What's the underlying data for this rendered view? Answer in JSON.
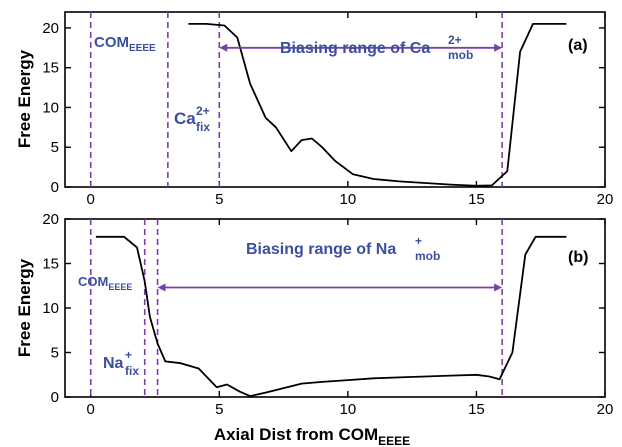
{
  "chart_data": [
    {
      "type": "line",
      "panel_label": "(a)",
      "ylabel": "Free Energy",
      "xlim": [
        -1,
        20
      ],
      "ylim": [
        0,
        22
      ],
      "xticks": [
        0,
        5,
        10,
        15,
        20
      ],
      "yticks": [
        0,
        5,
        10,
        15,
        20
      ],
      "x": [
        3.8,
        4.5,
        5.2,
        5.7,
        6.2,
        6.8,
        7.2,
        7.8,
        8.2,
        8.6,
        9.0,
        9.5,
        10.2,
        11.0,
        12.0,
        13.0,
        14.0,
        15.0,
        15.6,
        16.2,
        16.7,
        17.2,
        18.5
      ],
      "y": [
        20.5,
        20.5,
        20.3,
        18.8,
        13.0,
        8.7,
        7.5,
        4.5,
        5.9,
        6.1,
        5.0,
        3.3,
        1.6,
        1.0,
        0.7,
        0.5,
        0.3,
        0.15,
        0.2,
        2.0,
        17.0,
        20.5,
        20.5
      ],
      "vlines": [
        0,
        3,
        5,
        16
      ],
      "annotations": {
        "com": {
          "base": "COM",
          "sub": "EEEE"
        },
        "fix": {
          "base": "Ca",
          "sup": "2+",
          "sub": "fix"
        },
        "range": {
          "text": "Biasing range of Ca",
          "sup": "2+",
          "sub": "mob",
          "from": 5,
          "to": 16,
          "y": 17.5
        }
      }
    },
    {
      "type": "line",
      "panel_label": "(b)",
      "ylabel": "Free Energy",
      "xlabel": {
        "base": "Axial Dist from COM",
        "sub": "EEEE"
      },
      "xlim": [
        -1,
        20
      ],
      "ylim": [
        0,
        20
      ],
      "xticks": [
        0,
        5,
        10,
        15,
        20
      ],
      "yticks": [
        0,
        5,
        10,
        15,
        20
      ],
      "x": [
        0.2,
        1.3,
        1.8,
        2.1,
        2.3,
        2.6,
        2.9,
        3.5,
        4.2,
        4.9,
        5.3,
        5.8,
        6.2,
        6.8,
        7.5,
        8.2,
        9.0,
        10.0,
        11.0,
        12.0,
        13.0,
        14.0,
        15.0,
        15.5,
        15.9,
        16.4,
        16.9,
        17.3,
        18.5
      ],
      "y": [
        18.0,
        18.0,
        16.8,
        13.0,
        9.0,
        6.0,
        4.0,
        3.8,
        3.2,
        1.1,
        1.4,
        0.6,
        0.1,
        0.5,
        1.0,
        1.5,
        1.7,
        1.9,
        2.1,
        2.2,
        2.3,
        2.4,
        2.5,
        2.3,
        2.0,
        5.0,
        16.0,
        18.0,
        18.0
      ],
      "vlines": [
        0,
        2.1,
        2.6,
        16
      ],
      "annotations": {
        "com": {
          "base": "COM",
          "sub": "EEEE"
        },
        "fix": {
          "base": "Na",
          "sup": "+",
          "sub": "fix"
        },
        "range": {
          "text": "Biasing range of Na",
          "sup": "+",
          "sub": "mob",
          "from": 2.6,
          "to": 16,
          "y": 12.3
        }
      }
    }
  ],
  "colors": {
    "curve": "#000000",
    "marker": "#7a3fa8",
    "annotation_text": "#3b4fa0"
  }
}
